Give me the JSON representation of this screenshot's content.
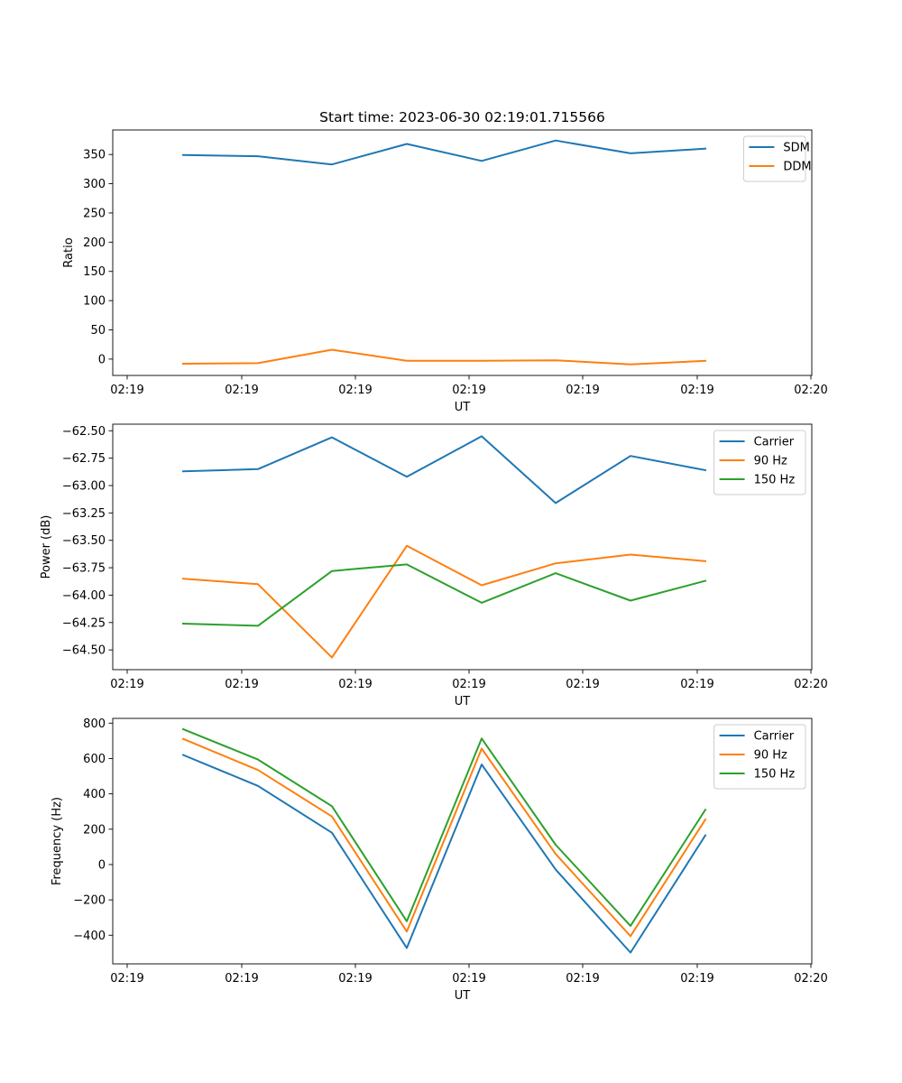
{
  "chart_data": [
    {
      "type": "line",
      "title": "Start time: 2023-06-30 02:19:01.715566",
      "xlabel": "UT",
      "ylabel": "Ratio",
      "x_tick_labels": [
        "02:19",
        "02:19",
        "02:19",
        "02:19",
        "02:19",
        "02:19",
        "02:20"
      ],
      "y_ticks": [
        0,
        50,
        100,
        150,
        200,
        250,
        300,
        350
      ],
      "y_tick_labels": [
        "0",
        "50",
        "100",
        "150",
        "200",
        "250",
        "300",
        "350"
      ],
      "ylim": [
        -28,
        392
      ],
      "legend_position": "top-right",
      "series": [
        {
          "name": "SDM",
          "color": "#1f77b4",
          "values": [
            349,
            347,
            333,
            368,
            339,
            374,
            352,
            360
          ]
        },
        {
          "name": "DDM",
          "color": "#ff7f0e",
          "values": [
            -8,
            -7,
            16,
            -3,
            -3,
            -2,
            -9,
            -3
          ]
        }
      ]
    },
    {
      "type": "line",
      "title": "",
      "xlabel": "UT",
      "ylabel": "Power (dB)",
      "x_tick_labels": [
        "02:19",
        "02:19",
        "02:19",
        "02:19",
        "02:19",
        "02:19",
        "02:20"
      ],
      "y_ticks": [
        -62.5,
        -62.75,
        -63.0,
        -63.25,
        -63.5,
        -63.75,
        -64.0,
        -64.25,
        -64.5
      ],
      "y_tick_labels": [
        "−62.50",
        "−62.75",
        "−63.00",
        "−63.25",
        "−63.50",
        "−63.75",
        "−64.00",
        "−64.25",
        "−64.50"
      ],
      "ylim": [
        -64.68,
        -62.44
      ],
      "legend_position": "top-right",
      "series": [
        {
          "name": "Carrier",
          "color": "#1f77b4",
          "values": [
            -62.87,
            -62.85,
            -62.56,
            -62.92,
            -62.55,
            -63.16,
            -62.73,
            -62.86
          ]
        },
        {
          "name": "90 Hz",
          "color": "#ff7f0e",
          "values": [
            -63.85,
            -63.9,
            -64.57,
            -63.55,
            -63.91,
            -63.71,
            -63.63,
            -63.69
          ]
        },
        {
          "name": "150 Hz",
          "color": "#2ca02c",
          "values": [
            -64.26,
            -64.28,
            -63.78,
            -63.72,
            -64.07,
            -63.8,
            -64.05,
            -63.87
          ]
        }
      ]
    },
    {
      "type": "line",
      "title": "",
      "xlabel": "UT",
      "ylabel": "Frequency (Hz)",
      "x_tick_labels": [
        "02:19",
        "02:19",
        "02:19",
        "02:19",
        "02:19",
        "02:19",
        "02:20"
      ],
      "y_ticks": [
        -400,
        -200,
        0,
        200,
        400,
        600,
        800
      ],
      "y_tick_labels": [
        "−400",
        "−200",
        "0",
        "200",
        "400",
        "600",
        "800"
      ],
      "ylim": [
        -562,
        827
      ],
      "legend_position": "top-right",
      "series": [
        {
          "name": "Carrier",
          "color": "#1f77b4",
          "values": [
            620,
            445,
            180,
            -472,
            566,
            -28,
            -498,
            165
          ]
        },
        {
          "name": "90 Hz",
          "color": "#ff7f0e",
          "values": [
            711,
            535,
            272,
            -379,
            656,
            60,
            -405,
            255
          ]
        },
        {
          "name": "150 Hz",
          "color": "#2ca02c",
          "values": [
            766,
            594,
            330,
            -321,
            713,
            112,
            -347,
            310
          ]
        }
      ]
    }
  ]
}
